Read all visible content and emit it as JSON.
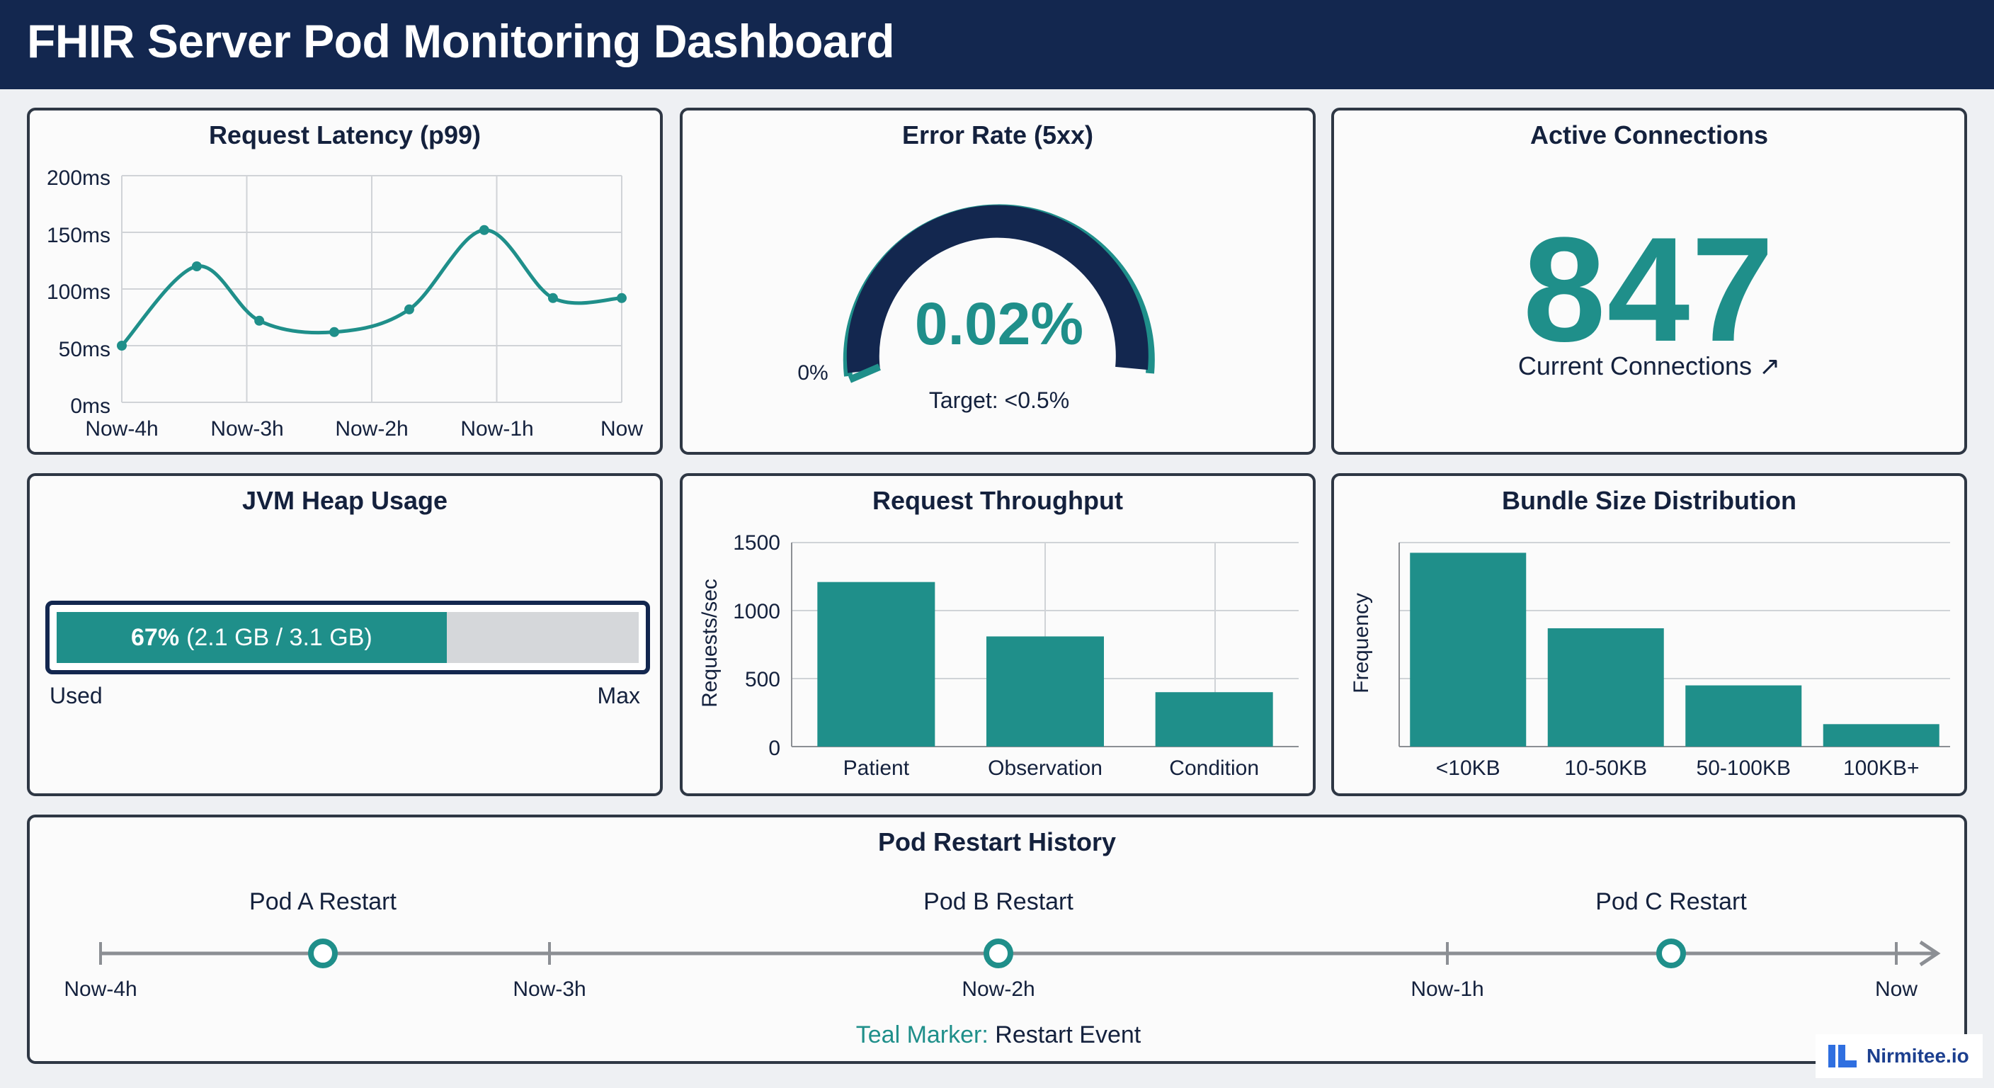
{
  "header": {
    "title": "FHIR Server Pod Monitoring Dashboard"
  },
  "latency": {
    "title": "Request Latency (p99)",
    "y_ticks": [
      "200ms",
      "150ms",
      "100ms",
      "50ms",
      "0ms"
    ],
    "x_ticks": [
      "Now-4h",
      "Now-3h",
      "Now-2h",
      "Now-1h",
      "Now"
    ]
  },
  "error_rate": {
    "title": "Error Rate (5xx)",
    "value": "0.02%",
    "min_label": "0%",
    "target": "Target: <0.5%"
  },
  "connections": {
    "title": "Active Connections",
    "value": "847",
    "label": "Current Connections ↗"
  },
  "heap": {
    "title": "JVM Heap Usage",
    "percent": "67%",
    "detail": "(2.1 GB / 3.1 GB)",
    "used_label": "Used",
    "max_label": "Max",
    "fill_fraction": 0.67
  },
  "throughput": {
    "title": "Request Throughput",
    "y_label": "Requests/sec",
    "y_ticks": [
      "1500",
      "1000",
      "500",
      "0"
    ]
  },
  "bundle": {
    "title": "Bundle Size Distribution",
    "y_label": "Frequency"
  },
  "restarts": {
    "title": "Pod Restart History",
    "ticks": [
      "Now-4h",
      "Now-3h",
      "Now-2h",
      "Now-1h",
      "Now"
    ],
    "events": [
      "Pod A Restart",
      "Pod B Restart",
      "Pod C Restart"
    ],
    "legend_key": "Teal Marker:",
    "legend_value": " Restart Event"
  },
  "badge": {
    "text": "Nirmitee.io"
  },
  "colors": {
    "accent": "#1f8f8a",
    "navy": "#13274f",
    "track": "#d5d7da"
  },
  "chart_data": [
    {
      "type": "line",
      "title": "Request Latency (p99)",
      "x": [
        0,
        0.6,
        1.1,
        1.7,
        2.3,
        2.9,
        3.45,
        4.0
      ],
      "x_tick_labels": [
        "Now-4h",
        "Now-3h",
        "Now-2h",
        "Now-1h",
        "Now"
      ],
      "values": [
        50,
        120,
        72,
        62,
        82,
        152,
        92,
        92
      ],
      "ylim": [
        0,
        200
      ],
      "unit": "ms",
      "grid": true
    },
    {
      "type": "bar",
      "title": "Request Throughput",
      "categories": [
        "Patient",
        "Observation",
        "Condition"
      ],
      "values": [
        1210,
        810,
        400
      ],
      "ylabel": "Requests/sec",
      "ylim": [
        0,
        1500
      ],
      "grid": true
    },
    {
      "type": "bar",
      "title": "Bundle Size Distribution",
      "categories": [
        "<10KB",
        "10-50KB",
        "50-100KB",
        "100KB+"
      ],
      "values": [
        95,
        58,
        30,
        11
      ],
      "ylabel": "Frequency",
      "ylim": [
        0,
        100
      ],
      "grid": true
    }
  ]
}
